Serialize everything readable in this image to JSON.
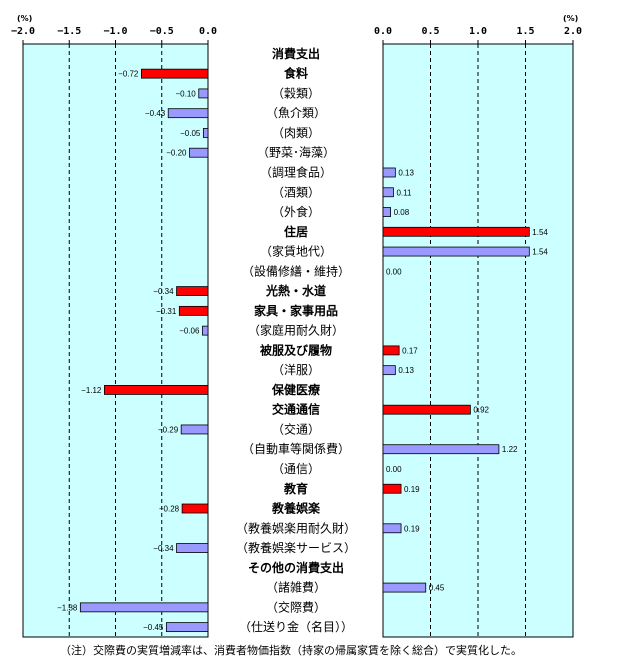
{
  "chart_data": [
    {
      "type": "bar",
      "orientation": "horizontal",
      "direction": "leftward",
      "unit_label": "(%)",
      "xlim": [
        -2.0,
        0.0
      ],
      "ticks": [
        "−2.0",
        "−1.5",
        "−1.0",
        "−0.5",
        "0.0"
      ],
      "background": "#ccffff",
      "grid": "vertical dashed",
      "series": [
        {
          "values": [
            null,
            -0.72,
            -0.1,
            -0.43,
            -0.05,
            -0.2,
            null,
            null,
            null,
            null,
            null,
            null,
            -0.34,
            -0.31,
            -0.06,
            null,
            null,
            -1.12,
            null,
            -0.29,
            null,
            null,
            null,
            -0.28,
            null,
            -0.34,
            null,
            null,
            -1.38,
            -0.45
          ],
          "labels": [
            "",
            "−0.72",
            "−0.10",
            "−0.43",
            "−0.05",
            "−0.20",
            "",
            "",
            "",
            "",
            "",
            "",
            "−0.34",
            "−0.31",
            "−0.06",
            "",
            "",
            "−1.12",
            "",
            "−0.29",
            "",
            "",
            "",
            "−0.28",
            "",
            "−0.34",
            "",
            "",
            "−1.38",
            "−0.45"
          ]
        }
      ]
    },
    {
      "type": "bar",
      "orientation": "horizontal",
      "direction": "rightward",
      "unit_label": "(%)",
      "xlim": [
        0.0,
        2.0
      ],
      "ticks": [
        "0.0",
        "0.5",
        "1.0",
        "1.5",
        "2.0"
      ],
      "background": "#ccffff",
      "grid": "vertical dashed",
      "series": [
        {
          "values": [
            null,
            null,
            null,
            null,
            null,
            null,
            0.13,
            0.11,
            0.08,
            1.54,
            1.54,
            0.0,
            null,
            null,
            null,
            0.17,
            0.13,
            null,
            0.92,
            null,
            1.22,
            0.0,
            0.19,
            null,
            0.19,
            null,
            null,
            0.45,
            null,
            null
          ],
          "labels": [
            "",
            "",
            "",
            "",
            "",
            "",
            "0.13",
            "0.11",
            "0.08",
            "1.54",
            "1.54",
            "0.00",
            "",
            "",
            "",
            "0.17",
            "0.13",
            "",
            "0.92",
            "",
            "1.22",
            "0.00",
            "0.19",
            "",
            "0.19",
            "",
            "",
            "0.45",
            "",
            ""
          ]
        }
      ]
    }
  ],
  "categories": [
    {
      "label": "消費支出",
      "bold": true
    },
    {
      "label": "食料",
      "bold": true
    },
    {
      "label": "（穀類）",
      "bold": false
    },
    {
      "label": "（魚介類）",
      "bold": false
    },
    {
      "label": "（肉類）",
      "bold": false
    },
    {
      "label": "（野菜･海藻）",
      "bold": false
    },
    {
      "label": "（調理食品）",
      "bold": false
    },
    {
      "label": "（酒類）",
      "bold": false
    },
    {
      "label": "（外食）",
      "bold": false
    },
    {
      "label": "住居",
      "bold": true
    },
    {
      "label": "（家賃地代）",
      "bold": false
    },
    {
      "label": "（設備修繕・維持）",
      "bold": false
    },
    {
      "label": "光熱・水道",
      "bold": true
    },
    {
      "label": "家具・家事用品",
      "bold": true
    },
    {
      "label": "（家庭用耐久財）",
      "bold": false
    },
    {
      "label": "被服及び履物",
      "bold": true
    },
    {
      "label": "（洋服）",
      "bold": false
    },
    {
      "label": "保健医療",
      "bold": true
    },
    {
      "label": "交通通信",
      "bold": true
    },
    {
      "label": "（交通）",
      "bold": false
    },
    {
      "label": "（自動車等関係費）",
      "bold": false
    },
    {
      "label": "（通信）",
      "bold": false
    },
    {
      "label": "教育",
      "bold": true
    },
    {
      "label": "教養娯楽",
      "bold": true
    },
    {
      "label": "（教養娯楽用耐久財）",
      "bold": false
    },
    {
      "label": "（教養娯楽サービス）",
      "bold": false
    },
    {
      "label": "その他の消費支出",
      "bold": true
    },
    {
      "label": "（諸雑費）",
      "bold": false
    },
    {
      "label": "（交際費）",
      "bold": false
    },
    {
      "label": "（仕送り金（名目））",
      "bold": false
    }
  ],
  "colors": {
    "bold_bar": "#ff0000",
    "sub_bar": "#9999ff",
    "background": "#ccffff"
  },
  "note": "（注）交際費の実質増減率は、消費者物価指数（持家の帰属家賃を除く総合）で実質化した。"
}
